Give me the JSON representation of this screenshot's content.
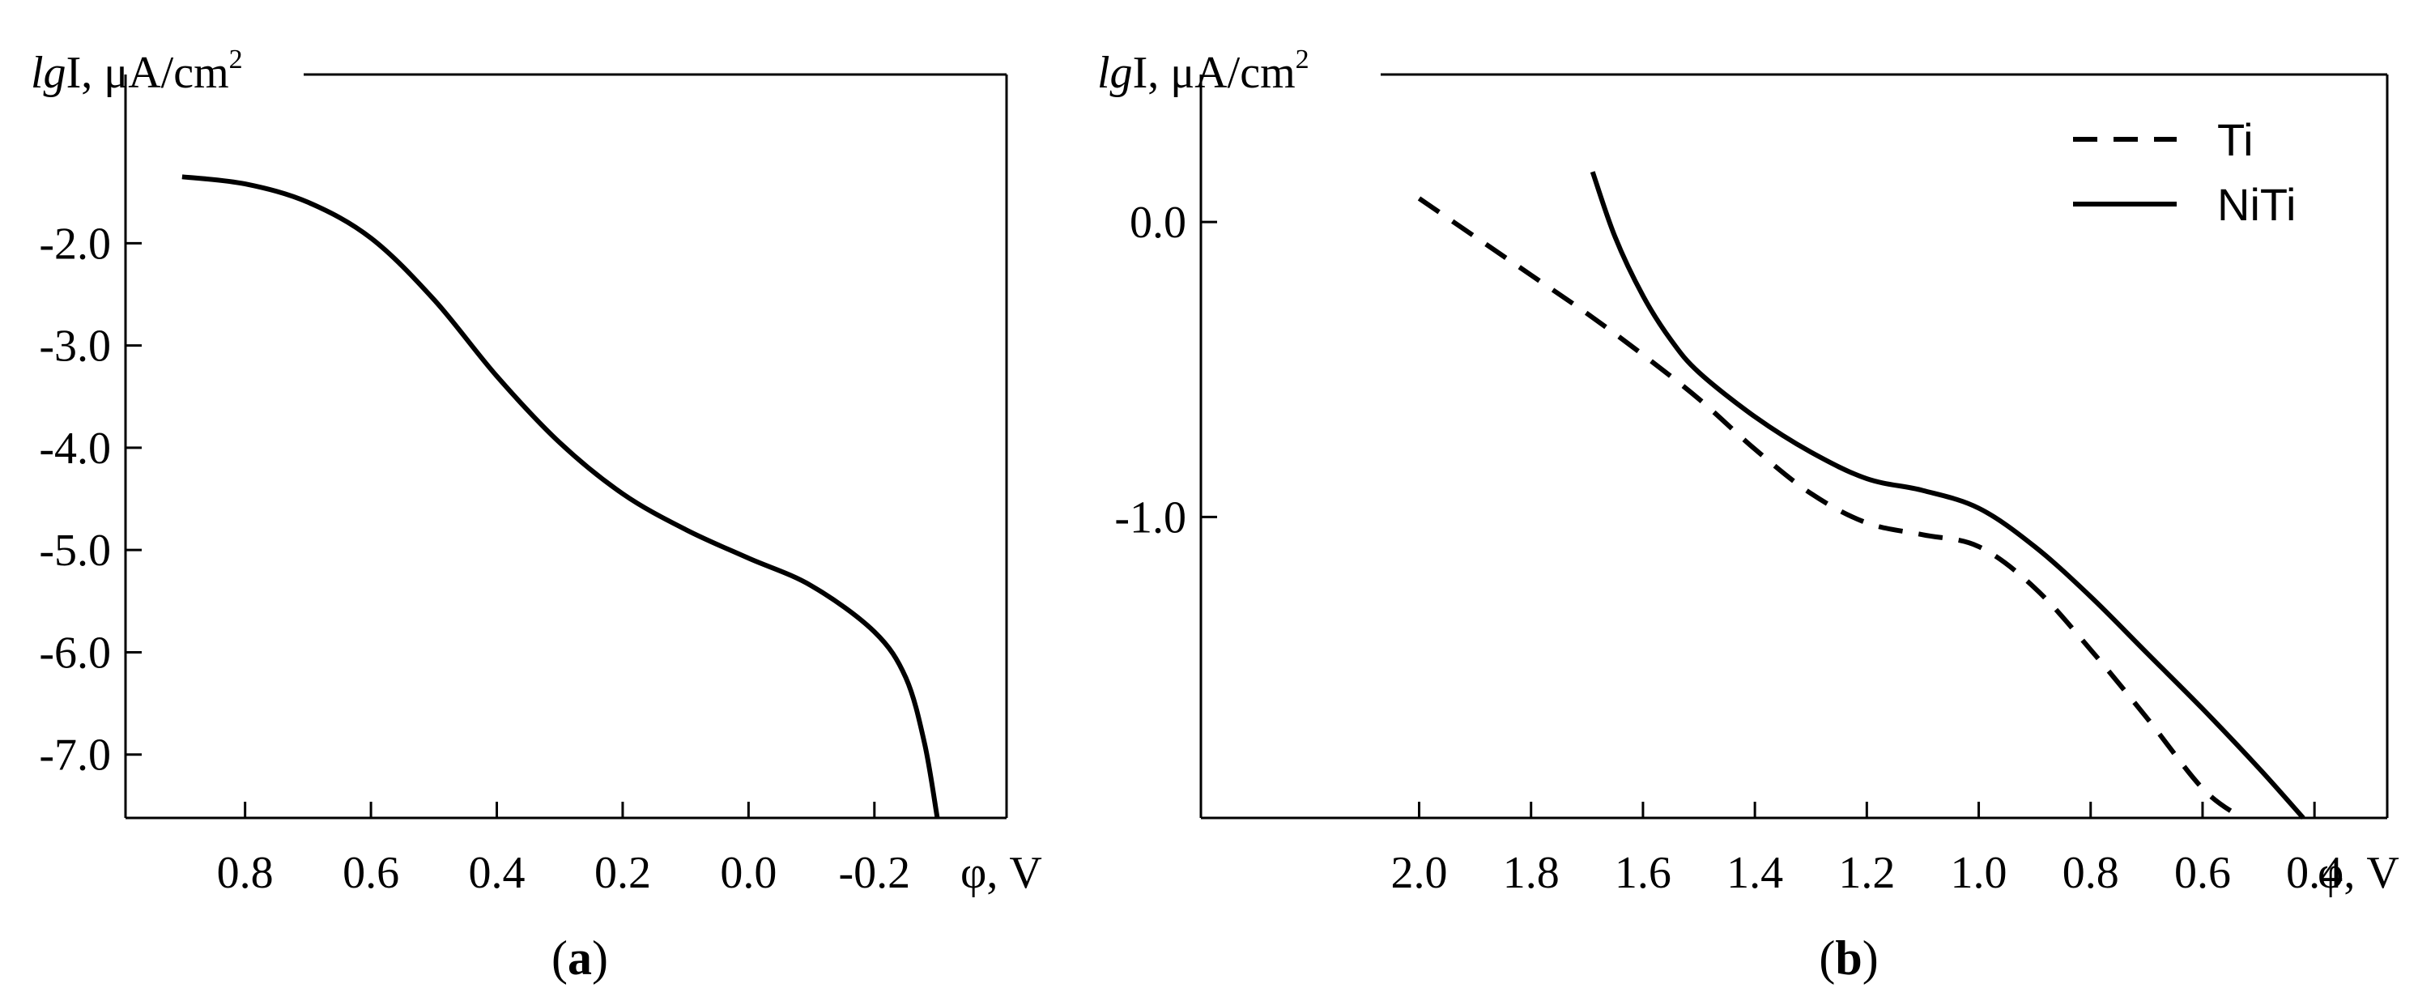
{
  "chart_data": [
    {
      "type": "line",
      "panel_label": "a",
      "ylabel_italic": "lg",
      "ylabel_rest": "I, μA/cm",
      "ylabel_sup": "2",
      "xlabel": "φ, V",
      "x_reversed": true,
      "xlim": [
        0.99,
        -0.41
      ],
      "ylim": [
        -7.62,
        -0.35
      ],
      "xticks": [
        0.8,
        0.6,
        0.4,
        0.2,
        0.0,
        -0.2
      ],
      "xtick_labels": [
        "0.8",
        "0.6",
        "0.4",
        "0.2",
        "0.0",
        "-0.2"
      ],
      "yticks": [
        -2.0,
        -3.0,
        -4.0,
        -5.0,
        -6.0,
        -7.0
      ],
      "ytick_labels": [
        "-2.0",
        "-3.0",
        "-4.0",
        "-5.0",
        "-6.0",
        "-7.0"
      ],
      "grid": false,
      "series": [
        {
          "style": "solid",
          "points": [
            [
              0.9,
              -1.35
            ],
            [
              0.8,
              -1.42
            ],
            [
              0.7,
              -1.6
            ],
            [
              0.6,
              -1.95
            ],
            [
              0.5,
              -2.55
            ],
            [
              0.4,
              -3.3
            ],
            [
              0.3,
              -3.95
            ],
            [
              0.2,
              -4.45
            ],
            [
              0.1,
              -4.8
            ],
            [
              0.0,
              -5.08
            ],
            [
              -0.1,
              -5.35
            ],
            [
              -0.2,
              -5.8
            ],
            [
              -0.25,
              -6.25
            ],
            [
              -0.28,
              -6.9
            ],
            [
              -0.3,
              -7.62
            ]
          ]
        }
      ]
    },
    {
      "type": "line",
      "panel_label": "b",
      "ylabel_italic": "lg",
      "ylabel_rest": "I, μA/cm",
      "ylabel_sup": "2",
      "xlabel": "φ, V",
      "x_reversed": true,
      "xlim": [
        2.39,
        0.27
      ],
      "ylim": [
        -2.02,
        0.5
      ],
      "xticks": [
        2.0,
        1.8,
        1.6,
        1.4,
        1.2,
        1.0,
        0.8,
        0.6,
        0.4
      ],
      "xtick_labels": [
        "2.0",
        "1.8",
        "1.6",
        "1.4",
        "1.2",
        "1.0",
        "0.8",
        "0.6",
        "0.4"
      ],
      "yticks": [
        0.0,
        -1.0
      ],
      "ytick_labels": [
        "0.0",
        "-1.0"
      ],
      "grid": false,
      "legend_position": "top-right",
      "series": [
        {
          "name": "Ti",
          "style": "dashed",
          "points": [
            [
              2.0,
              0.08
            ],
            [
              1.9,
              -0.05
            ],
            [
              1.8,
              -0.18
            ],
            [
              1.7,
              -0.31
            ],
            [
              1.6,
              -0.45
            ],
            [
              1.5,
              -0.6
            ],
            [
              1.4,
              -0.77
            ],
            [
              1.3,
              -0.92
            ],
            [
              1.2,
              -1.02
            ],
            [
              1.1,
              -1.06
            ],
            [
              1.0,
              -1.1
            ],
            [
              0.9,
              -1.24
            ],
            [
              0.8,
              -1.45
            ],
            [
              0.7,
              -1.68
            ],
            [
              0.6,
              -1.92
            ],
            [
              0.53,
              -2.02
            ]
          ]
        },
        {
          "name": "NiTi",
          "style": "solid",
          "points": [
            [
              1.69,
              0.17
            ],
            [
              1.65,
              -0.05
            ],
            [
              1.6,
              -0.25
            ],
            [
              1.55,
              -0.4
            ],
            [
              1.5,
              -0.51
            ],
            [
              1.4,
              -0.66
            ],
            [
              1.3,
              -0.78
            ],
            [
              1.2,
              -0.87
            ],
            [
              1.1,
              -0.91
            ],
            [
              1.0,
              -0.97
            ],
            [
              0.9,
              -1.1
            ],
            [
              0.8,
              -1.27
            ],
            [
              0.7,
              -1.46
            ],
            [
              0.6,
              -1.65
            ],
            [
              0.5,
              -1.85
            ],
            [
              0.42,
              -2.02
            ]
          ]
        }
      ]
    }
  ]
}
